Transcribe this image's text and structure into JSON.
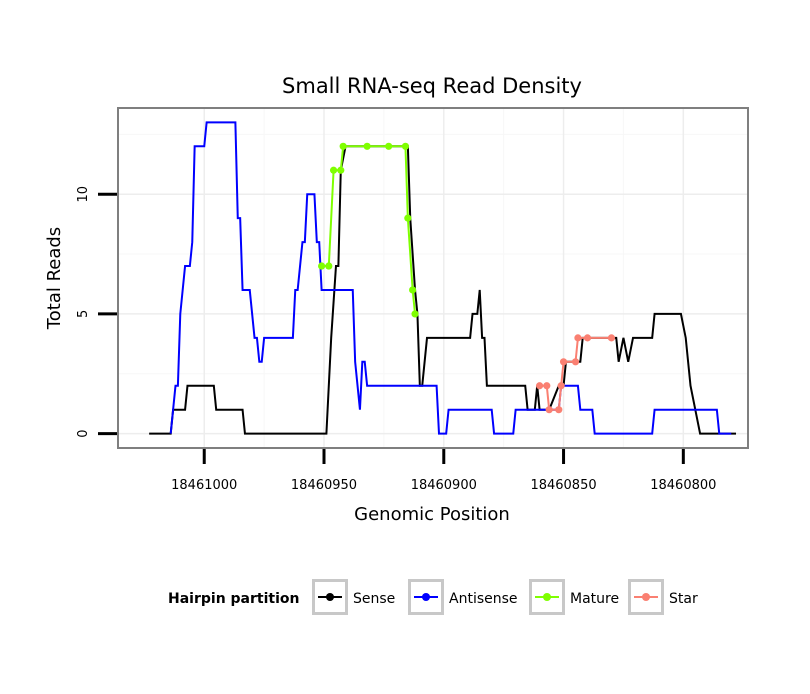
{
  "chart_data": {
    "type": "line",
    "title": "Small RNA-seq Read Density",
    "xlabel": "Genomic Position",
    "ylabel": "Total Reads",
    "xlim": [
      18461036,
      18460773
    ],
    "ylim": [
      -0.6,
      13.6
    ],
    "x_reversed": true,
    "x_ticks": [
      {
        "value": 18461000,
        "label": "18461000"
      },
      {
        "value": 18460950,
        "label": "18460950"
      },
      {
        "value": 18460900,
        "label": "18460900"
      },
      {
        "value": 18460850,
        "label": "18460850"
      },
      {
        "value": 18460800,
        "label": "18460800"
      }
    ],
    "y_ticks": [
      {
        "value": 0,
        "label": "0"
      },
      {
        "value": 5,
        "label": "5"
      },
      {
        "value": 10,
        "label": "10"
      }
    ],
    "grid": true,
    "legend": {
      "title": "Hairpin partition",
      "placement": "bottom",
      "items": [
        {
          "name": "Sense",
          "color": "#000000"
        },
        {
          "name": "Antisense",
          "color": "#0000ff"
        },
        {
          "name": "Mature",
          "color": "#7fff00"
        },
        {
          "name": "Star",
          "color": "#fa8072"
        }
      ]
    },
    "series": [
      {
        "name": "Sense",
        "color": "#000000",
        "points": [
          [
            18461023,
            0
          ],
          [
            18461014,
            0
          ],
          [
            18461013,
            1
          ],
          [
            18461008,
            1
          ],
          [
            18461007,
            2
          ],
          [
            18460996,
            2
          ],
          [
            18460995,
            1
          ],
          [
            18460984,
            1
          ],
          [
            18460983,
            0
          ],
          [
            18460949,
            0
          ],
          [
            18460947,
            4
          ],
          [
            18460945,
            7
          ],
          [
            18460944,
            7
          ],
          [
            18460943,
            11
          ],
          [
            18460941,
            12
          ],
          [
            18460935,
            12
          ],
          [
            18460929,
            12
          ],
          [
            18460922,
            12
          ],
          [
            18460915,
            12
          ],
          [
            18460914,
            9
          ],
          [
            18460912,
            6
          ],
          [
            18460911,
            5
          ],
          [
            18460910,
            2
          ],
          [
            18460909,
            2
          ],
          [
            18460907,
            4
          ],
          [
            18460889,
            4
          ],
          [
            18460888,
            5
          ],
          [
            18460886,
            5
          ],
          [
            18460885,
            6
          ],
          [
            18460884,
            4
          ],
          [
            18460883,
            4
          ],
          [
            18460882,
            2
          ],
          [
            18460866,
            2
          ],
          [
            18460865,
            1
          ],
          [
            18460862,
            1
          ],
          [
            18460861,
            2
          ],
          [
            18460860,
            1
          ],
          [
            18460858,
            1
          ],
          [
            18460856,
            1
          ],
          [
            18460852,
            2
          ],
          [
            18460850,
            2
          ],
          [
            18460849,
            3
          ],
          [
            18460848,
            3
          ],
          [
            18460843,
            3
          ],
          [
            18460842,
            4
          ],
          [
            18460828,
            4
          ],
          [
            18460827,
            3
          ],
          [
            18460825,
            4
          ],
          [
            18460823,
            3
          ],
          [
            18460821,
            4
          ],
          [
            18460813,
            4
          ],
          [
            18460812,
            5
          ],
          [
            18460801,
            5
          ],
          [
            18460799,
            4
          ],
          [
            18460798,
            3
          ],
          [
            18460797,
            2
          ],
          [
            18460795,
            1
          ],
          [
            18460793,
            0
          ],
          [
            18460778,
            0
          ]
        ]
      },
      {
        "name": "Antisense",
        "color": "#0000ff",
        "points": [
          [
            18461014,
            0
          ],
          [
            18461013,
            1
          ],
          [
            18461012,
            2
          ],
          [
            18461011,
            2
          ],
          [
            18461010,
            5
          ],
          [
            18461008,
            7
          ],
          [
            18461006,
            7
          ],
          [
            18461005,
            8
          ],
          [
            18461004,
            12
          ],
          [
            18461000,
            12
          ],
          [
            18460999,
            13
          ],
          [
            18460987,
            13
          ],
          [
            18460986,
            9
          ],
          [
            18460985,
            9
          ],
          [
            18460984,
            6
          ],
          [
            18460981,
            6
          ],
          [
            18460979,
            4
          ],
          [
            18460978,
            4
          ],
          [
            18460977,
            3
          ],
          [
            18460976,
            3
          ],
          [
            18460975,
            4
          ],
          [
            18460963,
            4
          ],
          [
            18460962,
            6
          ],
          [
            18460961,
            6
          ],
          [
            18460959,
            8
          ],
          [
            18460958,
            8
          ],
          [
            18460957,
            10
          ],
          [
            18460954,
            10
          ],
          [
            18460953,
            8
          ],
          [
            18460952,
            8
          ],
          [
            18460951,
            6
          ],
          [
            18460938,
            6
          ],
          [
            18460937,
            3
          ],
          [
            18460935,
            1
          ],
          [
            18460934,
            3
          ],
          [
            18460933,
            3
          ],
          [
            18460932,
            2
          ],
          [
            18460903,
            2
          ],
          [
            18460902,
            0
          ],
          [
            18460899,
            0
          ],
          [
            18460898,
            1
          ],
          [
            18460880,
            1
          ],
          [
            18460879,
            0
          ],
          [
            18460871,
            0
          ],
          [
            18460870,
            1
          ],
          [
            18460852,
            1
          ],
          [
            18460851,
            2
          ],
          [
            18460844,
            2
          ],
          [
            18460843,
            1
          ],
          [
            18460838,
            1
          ],
          [
            18460837,
            0
          ],
          [
            18460813,
            0
          ],
          [
            18460812,
            1
          ],
          [
            18460786,
            1
          ],
          [
            18460785,
            0
          ],
          [
            18460780,
            0
          ]
        ]
      },
      {
        "name": "Mature",
        "color": "#7fff00",
        "points": [
          [
            18460951,
            7
          ],
          [
            18460948,
            7
          ],
          [
            18460946,
            11
          ],
          [
            18460943,
            11
          ],
          [
            18460942,
            12
          ],
          [
            18460932,
            12
          ],
          [
            18460923,
            12
          ],
          [
            18460916,
            12
          ],
          [
            18460915,
            9
          ],
          [
            18460913,
            6
          ],
          [
            18460912,
            5
          ]
        ]
      },
      {
        "name": "Star",
        "color": "#fa8072",
        "points": [
          [
            18460860,
            2
          ],
          [
            18460857,
            2
          ],
          [
            18460856,
            1
          ],
          [
            18460852,
            1
          ],
          [
            18460851,
            2
          ],
          [
            18460850,
            3
          ],
          [
            18460845,
            3
          ],
          [
            18460844,
            4
          ],
          [
            18460840,
            4
          ],
          [
            18460830,
            4
          ]
        ]
      }
    ]
  }
}
